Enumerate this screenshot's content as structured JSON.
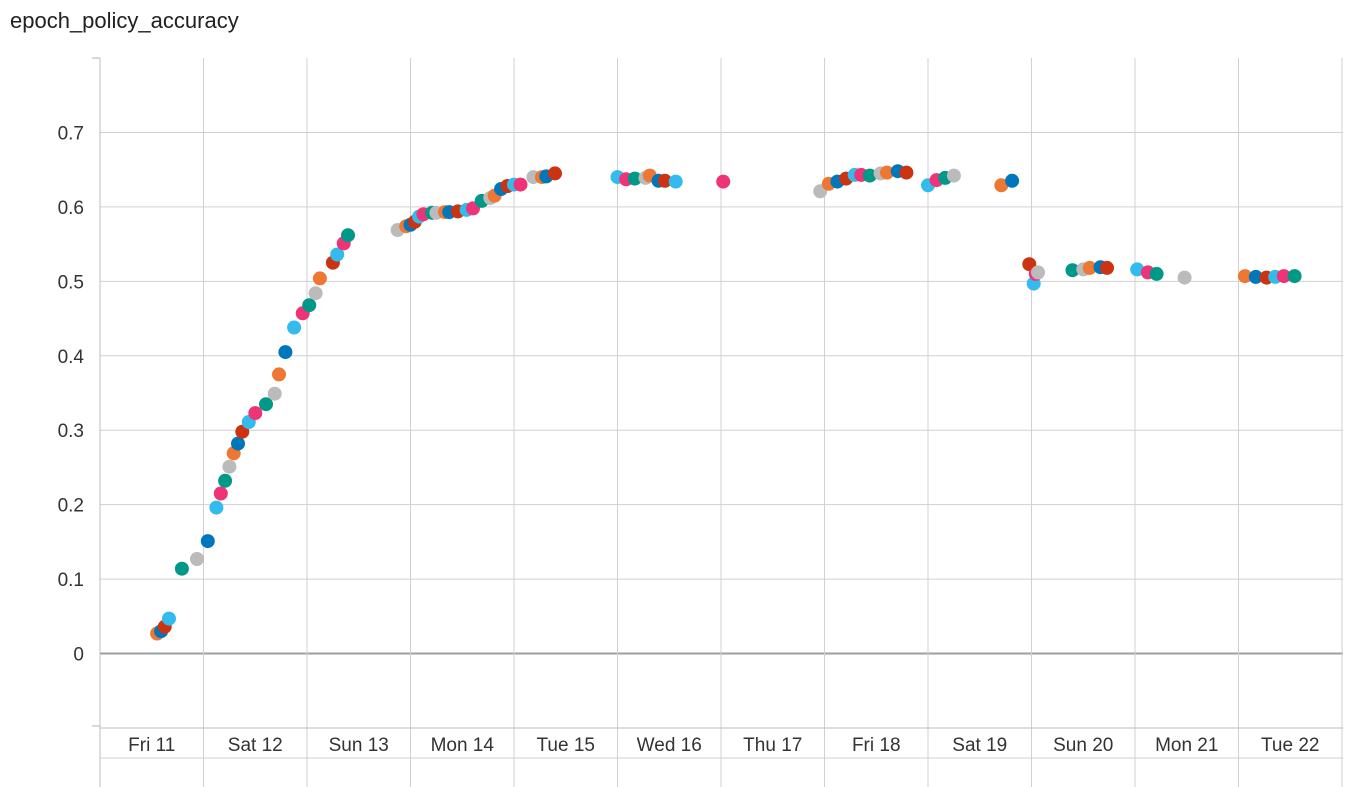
{
  "chart_data": {
    "type": "scatter",
    "title": "epoch_policy_accuracy",
    "xlabel": "",
    "ylabel": "",
    "x_axis": "date",
    "x_range": [
      "2023-08-11",
      "2023-08-22T23:30"
    ],
    "ylim": [
      -0.1,
      0.8
    ],
    "y_ticks": [
      0,
      0.1,
      0.2,
      0.3,
      0.4,
      0.5,
      0.6,
      0.7
    ],
    "y_tick_labels": [
      "0",
      "0.1",
      "0.2",
      "0.3",
      "0.4",
      "0.5",
      "0.6",
      "0.7"
    ],
    "x_ticks": [
      "2023-08-11",
      "2023-08-12",
      "2023-08-13",
      "2023-08-14",
      "2023-08-15",
      "2023-08-16",
      "2023-08-17",
      "2023-08-18",
      "2023-08-19",
      "2023-08-20",
      "2023-08-21",
      "2023-08-22"
    ],
    "x_tick_labels": [
      "Fri 11",
      "Sat 12",
      "Sun 13",
      "Mon 14",
      "Tue 15",
      "Wed 16",
      "Thu 17",
      "Fri 18",
      "Sat 19",
      "Sun 20",
      "Mon 21",
      "Tue 22"
    ],
    "grid": true,
    "legend": "none",
    "palette": [
      "#0077bb",
      "#33bbee",
      "#009988",
      "#ee7733",
      "#cc3311",
      "#ee3377",
      "#bbbbbb"
    ],
    "points": [
      {
        "x": "2023-08-11T13:15",
        "y": 0.027,
        "color": "#ee7733"
      },
      {
        "x": "2023-08-11T14:10",
        "y": 0.03,
        "color": "#0077bb"
      },
      {
        "x": "2023-08-11T15:00",
        "y": 0.036,
        "color": "#cc3311"
      },
      {
        "x": "2023-08-11T16:00",
        "y": 0.047,
        "color": "#33bbee"
      },
      {
        "x": "2023-08-11T19:00",
        "y": 0.114,
        "color": "#009988"
      },
      {
        "x": "2023-08-11T22:30",
        "y": 0.127,
        "color": "#bbbbbb"
      },
      {
        "x": "2023-08-12T01:00",
        "y": 0.151,
        "color": "#0077bb"
      },
      {
        "x": "2023-08-12T03:00",
        "y": 0.196,
        "color": "#33bbee"
      },
      {
        "x": "2023-08-12T04:00",
        "y": 0.215,
        "color": "#ee3377"
      },
      {
        "x": "2023-08-12T05:00",
        "y": 0.232,
        "color": "#009988"
      },
      {
        "x": "2023-08-12T06:00",
        "y": 0.251,
        "color": "#bbbbbb"
      },
      {
        "x": "2023-08-12T07:00",
        "y": 0.269,
        "color": "#ee7733"
      },
      {
        "x": "2023-08-12T08:00",
        "y": 0.282,
        "color": "#0077bb"
      },
      {
        "x": "2023-08-12T09:00",
        "y": 0.298,
        "color": "#cc3311"
      },
      {
        "x": "2023-08-12T10:30",
        "y": 0.311,
        "color": "#33bbee"
      },
      {
        "x": "2023-08-12T12:00",
        "y": 0.323,
        "color": "#ee3377"
      },
      {
        "x": "2023-08-12T14:30",
        "y": 0.335,
        "color": "#009988"
      },
      {
        "x": "2023-08-12T16:30",
        "y": 0.349,
        "color": "#bbbbbb"
      },
      {
        "x": "2023-08-12T17:30",
        "y": 0.375,
        "color": "#ee7733"
      },
      {
        "x": "2023-08-12T19:00",
        "y": 0.405,
        "color": "#0077bb"
      },
      {
        "x": "2023-08-12T21:00",
        "y": 0.438,
        "color": "#33bbee"
      },
      {
        "x": "2023-08-12T23:00",
        "y": 0.457,
        "color": "#ee3377"
      },
      {
        "x": "2023-08-13T00:30",
        "y": 0.468,
        "color": "#009988"
      },
      {
        "x": "2023-08-13T02:00",
        "y": 0.484,
        "color": "#bbbbbb"
      },
      {
        "x": "2023-08-13T03:00",
        "y": 0.504,
        "color": "#ee7733"
      },
      {
        "x": "2023-08-13T06:00",
        "y": 0.525,
        "color": "#cc3311"
      },
      {
        "x": "2023-08-13T07:00",
        "y": 0.536,
        "color": "#33bbee"
      },
      {
        "x": "2023-08-13T08:30",
        "y": 0.551,
        "color": "#ee3377"
      },
      {
        "x": "2023-08-13T09:30",
        "y": 0.562,
        "color": "#009988"
      },
      {
        "x": "2023-08-13T21:00",
        "y": 0.569,
        "color": "#bbbbbb"
      },
      {
        "x": "2023-08-13T23:00",
        "y": 0.574,
        "color": "#ee7733"
      },
      {
        "x": "2023-08-14T00:00",
        "y": 0.576,
        "color": "#0077bb"
      },
      {
        "x": "2023-08-14T01:00",
        "y": 0.58,
        "color": "#cc3311"
      },
      {
        "x": "2023-08-14T02:00",
        "y": 0.587,
        "color": "#33bbee"
      },
      {
        "x": "2023-08-14T03:00",
        "y": 0.59,
        "color": "#ee3377"
      },
      {
        "x": "2023-08-14T05:00",
        "y": 0.592,
        "color": "#009988"
      },
      {
        "x": "2023-08-14T06:00",
        "y": 0.592,
        "color": "#bbbbbb"
      },
      {
        "x": "2023-08-14T08:00",
        "y": 0.593,
        "color": "#ee7733"
      },
      {
        "x": "2023-08-14T09:00",
        "y": 0.593,
        "color": "#0077bb"
      },
      {
        "x": "2023-08-14T11:00",
        "y": 0.594,
        "color": "#cc3311"
      },
      {
        "x": "2023-08-14T13:00",
        "y": 0.596,
        "color": "#33bbee"
      },
      {
        "x": "2023-08-14T14:30",
        "y": 0.598,
        "color": "#ee3377"
      },
      {
        "x": "2023-08-14T16:30",
        "y": 0.608,
        "color": "#009988"
      },
      {
        "x": "2023-08-14T18:30",
        "y": 0.612,
        "color": "#bbbbbb"
      },
      {
        "x": "2023-08-14T19:30",
        "y": 0.615,
        "color": "#ee7733"
      },
      {
        "x": "2023-08-14T21:00",
        "y": 0.624,
        "color": "#0077bb"
      },
      {
        "x": "2023-08-14T22:30",
        "y": 0.628,
        "color": "#cc3311"
      },
      {
        "x": "2023-08-15T00:00",
        "y": 0.63,
        "color": "#33bbee"
      },
      {
        "x": "2023-08-15T01:30",
        "y": 0.63,
        "color": "#ee3377"
      },
      {
        "x": "2023-08-15T04:30",
        "y": 0.64,
        "color": "#bbbbbb"
      },
      {
        "x": "2023-08-15T06:30",
        "y": 0.64,
        "color": "#ee7733"
      },
      {
        "x": "2023-08-15T07:30",
        "y": 0.641,
        "color": "#0077bb"
      },
      {
        "x": "2023-08-15T09:30",
        "y": 0.645,
        "color": "#cc3311"
      },
      {
        "x": "2023-08-16T00:00",
        "y": 0.64,
        "color": "#33bbee"
      },
      {
        "x": "2023-08-16T02:00",
        "y": 0.637,
        "color": "#ee3377"
      },
      {
        "x": "2023-08-16T04:00",
        "y": 0.638,
        "color": "#009988"
      },
      {
        "x": "2023-08-16T06:30",
        "y": 0.639,
        "color": "#bbbbbb"
      },
      {
        "x": "2023-08-16T07:30",
        "y": 0.642,
        "color": "#ee7733"
      },
      {
        "x": "2023-08-16T09:30",
        "y": 0.635,
        "color": "#0077bb"
      },
      {
        "x": "2023-08-16T11:00",
        "y": 0.635,
        "color": "#cc3311"
      },
      {
        "x": "2023-08-16T13:30",
        "y": 0.634,
        "color": "#33bbee"
      },
      {
        "x": "2023-08-17T00:30",
        "y": 0.634,
        "color": "#ee3377"
      },
      {
        "x": "2023-08-17T23:00",
        "y": 0.621,
        "color": "#bbbbbb"
      },
      {
        "x": "2023-08-18T01:00",
        "y": 0.631,
        "color": "#ee7733"
      },
      {
        "x": "2023-08-18T03:00",
        "y": 0.634,
        "color": "#0077bb"
      },
      {
        "x": "2023-08-18T05:00",
        "y": 0.638,
        "color": "#cc3311"
      },
      {
        "x": "2023-08-18T07:00",
        "y": 0.643,
        "color": "#33bbee"
      },
      {
        "x": "2023-08-18T08:30",
        "y": 0.643,
        "color": "#ee3377"
      },
      {
        "x": "2023-08-18T10:30",
        "y": 0.642,
        "color": "#009988"
      },
      {
        "x": "2023-08-18T13:00",
        "y": 0.645,
        "color": "#bbbbbb"
      },
      {
        "x": "2023-08-18T14:30",
        "y": 0.646,
        "color": "#ee7733"
      },
      {
        "x": "2023-08-18T17:00",
        "y": 0.648,
        "color": "#0077bb"
      },
      {
        "x": "2023-08-18T19:00",
        "y": 0.646,
        "color": "#cc3311"
      },
      {
        "x": "2023-08-19T00:00",
        "y": 0.629,
        "color": "#33bbee"
      },
      {
        "x": "2023-08-19T02:00",
        "y": 0.636,
        "color": "#ee3377"
      },
      {
        "x": "2023-08-19T04:00",
        "y": 0.639,
        "color": "#009988"
      },
      {
        "x": "2023-08-19T06:00",
        "y": 0.642,
        "color": "#bbbbbb"
      },
      {
        "x": "2023-08-19T17:00",
        "y": 0.629,
        "color": "#ee7733"
      },
      {
        "x": "2023-08-19T19:30",
        "y": 0.635,
        "color": "#0077bb"
      },
      {
        "x": "2023-08-19T23:30",
        "y": 0.523,
        "color": "#cc3311"
      },
      {
        "x": "2023-08-20T00:30",
        "y": 0.497,
        "color": "#33bbee"
      },
      {
        "x": "2023-08-20T01:00",
        "y": 0.51,
        "color": "#ee3377"
      },
      {
        "x": "2023-08-20T01:30",
        "y": 0.512,
        "color": "#bbbbbb"
      },
      {
        "x": "2023-08-20T09:30",
        "y": 0.515,
        "color": "#009988"
      },
      {
        "x": "2023-08-20T12:00",
        "y": 0.516,
        "color": "#bbbbbb"
      },
      {
        "x": "2023-08-20T13:30",
        "y": 0.518,
        "color": "#ee7733"
      },
      {
        "x": "2023-08-20T16:00",
        "y": 0.519,
        "color": "#0077bb"
      },
      {
        "x": "2023-08-20T17:30",
        "y": 0.518,
        "color": "#cc3311"
      },
      {
        "x": "2023-08-21T00:30",
        "y": 0.516,
        "color": "#33bbee"
      },
      {
        "x": "2023-08-21T03:00",
        "y": 0.512,
        "color": "#ee3377"
      },
      {
        "x": "2023-08-21T05:00",
        "y": 0.51,
        "color": "#009988"
      },
      {
        "x": "2023-08-21T11:30",
        "y": 0.505,
        "color": "#bbbbbb"
      },
      {
        "x": "2023-08-22T01:30",
        "y": 0.507,
        "color": "#ee7733"
      },
      {
        "x": "2023-08-22T04:00",
        "y": 0.506,
        "color": "#0077bb"
      },
      {
        "x": "2023-08-22T06:30",
        "y": 0.505,
        "color": "#cc3311"
      },
      {
        "x": "2023-08-22T08:30",
        "y": 0.506,
        "color": "#33bbee"
      },
      {
        "x": "2023-08-22T10:30",
        "y": 0.507,
        "color": "#ee3377"
      },
      {
        "x": "2023-08-22T13:00",
        "y": 0.507,
        "color": "#009988"
      }
    ]
  }
}
